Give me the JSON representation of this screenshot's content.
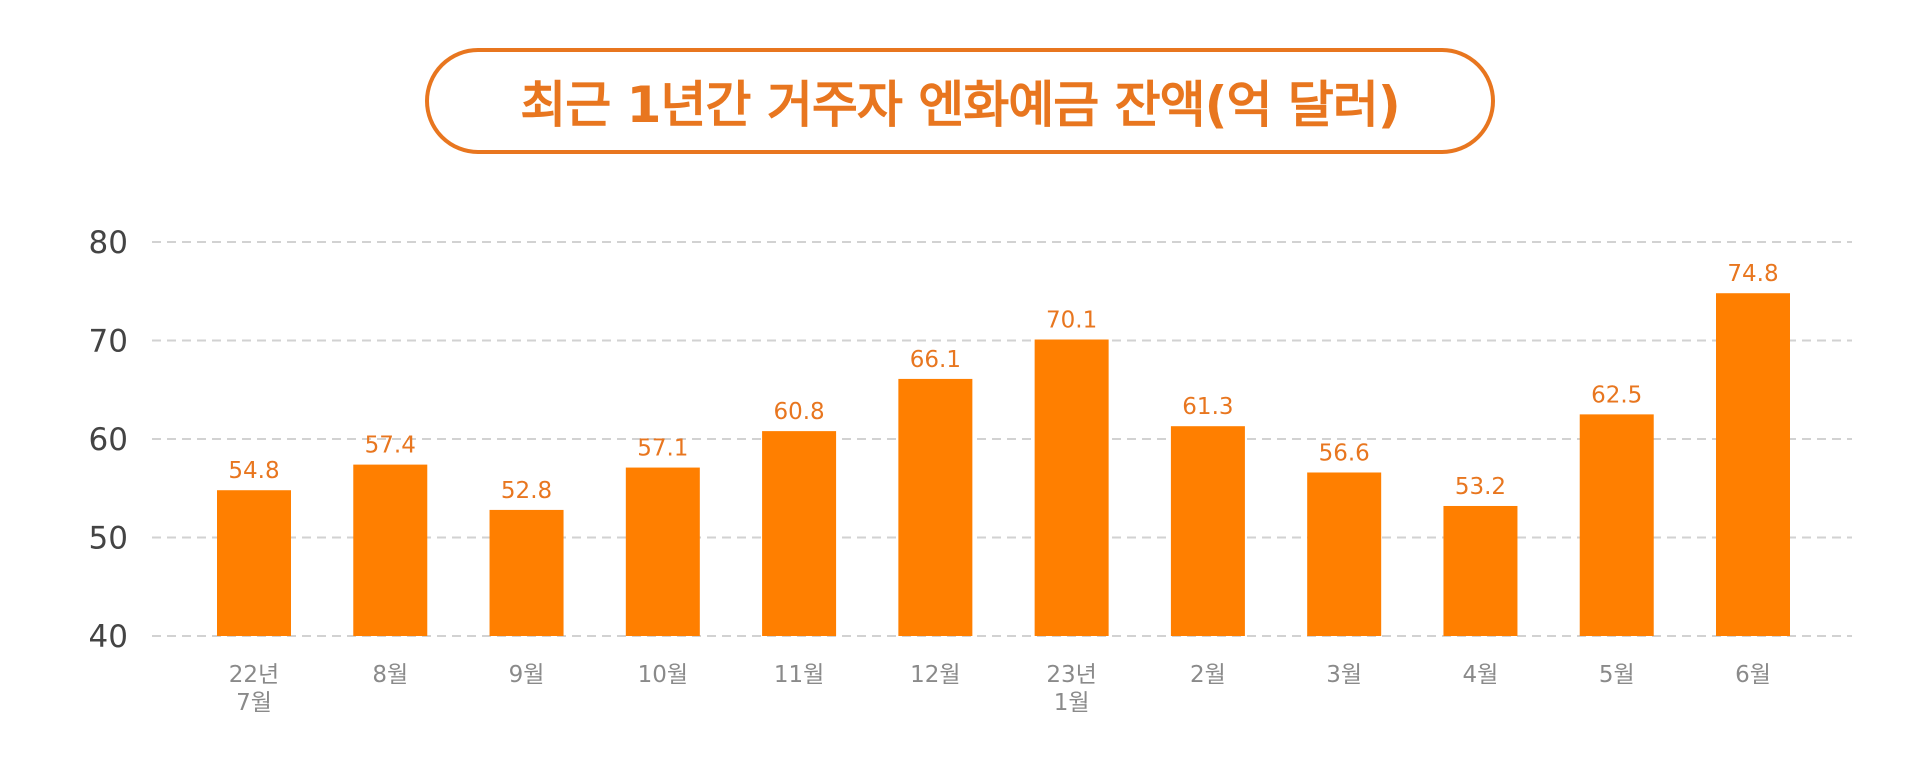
{
  "chart_data": {
    "type": "bar",
    "title": "최근 1년간 거주자 엔화예금 잔액(억 달러)",
    "categories": [
      [
        "22년",
        "7월"
      ],
      [
        "8월"
      ],
      [
        "9월"
      ],
      [
        "10월"
      ],
      [
        "11월"
      ],
      [
        "12월"
      ],
      [
        "23년",
        "1월"
      ],
      [
        "2월"
      ],
      [
        "3월"
      ],
      [
        "4월"
      ],
      [
        "5월"
      ],
      [
        "6월"
      ]
    ],
    "values": [
      54.8,
      57.4,
      52.8,
      57.1,
      60.8,
      66.1,
      70.1,
      61.3,
      56.6,
      53.2,
      62.5,
      74.8
    ],
    "labels": [
      "54.8",
      "57.4",
      "52.8",
      "57.1",
      "60.8",
      "66.1",
      "70.1",
      "61.3",
      "56.6",
      "53.2",
      "62.5",
      "74.8"
    ],
    "ylim": [
      40,
      80
    ],
    "yticks": [
      40,
      50,
      60,
      70,
      80
    ],
    "xlabel": "",
    "ylabel": "",
    "grid": true,
    "bar_color": "#ff7f00",
    "label_color": "#e8761f"
  }
}
